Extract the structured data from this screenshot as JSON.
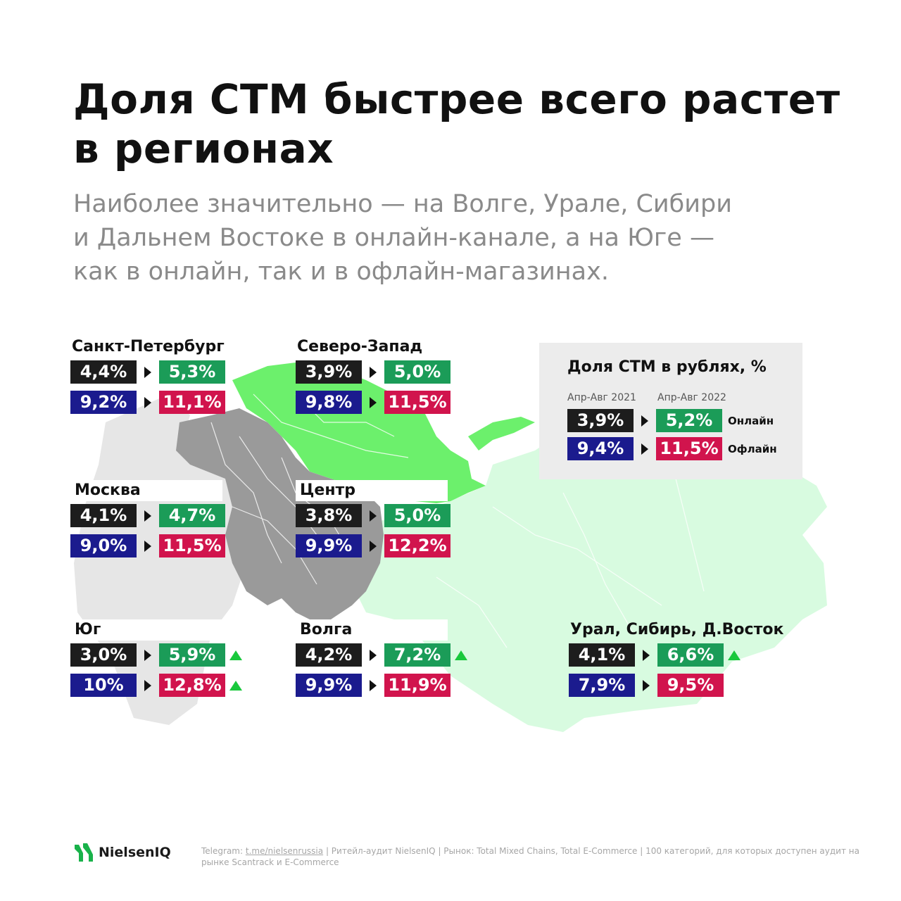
{
  "chart_data": {
    "type": "table",
    "title": "Доля СТМ быстрее всего растет\nв регионах",
    "subtitle": "Наиболее значительно — на Волге, Урале, Сибири\nи Дальнем Востоке в онлайн-канале, а на Юге —\nкак в онлайн, так и в офлайн-магазинах.",
    "legend": {
      "title": "Доля СТМ в рублях, %",
      "period_prev": "Апр-Авг 2021",
      "period_cur": "Апр-Авг 2022",
      "online_label": "Онлайн",
      "offline_label": "Офлайн",
      "online_prev": "3,9%",
      "online_cur": "5,2%",
      "offline_prev": "9,4%",
      "offline_cur": "11,5%"
    },
    "regions": [
      {
        "name": "Санкт-Петербург",
        "online_prev": "4,4%",
        "online_cur": "5,3%",
        "offline_prev": "9,2%",
        "offline_cur": "11,1%",
        "online_up": false,
        "offline_up": false
      },
      {
        "name": "Северо-Запад",
        "online_prev": "3,9%",
        "online_cur": "5,0%",
        "offline_prev": "9,8%",
        "offline_cur": "11,5%",
        "online_up": false,
        "offline_up": false
      },
      {
        "name": "Москва",
        "online_prev": "4,1%",
        "online_cur": "4,7%",
        "offline_prev": "9,0%",
        "offline_cur": "11,5%",
        "online_up": false,
        "offline_up": false
      },
      {
        "name": "Центр",
        "online_prev": "3,8%",
        "online_cur": "5,0%",
        "offline_prev": "9,9%",
        "offline_cur": "12,2%",
        "online_up": false,
        "offline_up": false
      },
      {
        "name": "Юг",
        "online_prev": "3,0%",
        "online_cur": "5,9%",
        "offline_prev": "10%",
        "offline_cur": "12,8%",
        "online_up": true,
        "offline_up": true
      },
      {
        "name": "Волга",
        "online_prev": "4,2%",
        "online_cur": "7,2%",
        "offline_prev": "9,9%",
        "offline_cur": "11,9%",
        "online_up": true,
        "offline_up": false
      },
      {
        "name": "Урал, Сибирь, Д.Восток",
        "online_prev": "4,1%",
        "online_cur": "6,6%",
        "offline_prev": "7,9%",
        "offline_cur": "9,5%",
        "online_up": true,
        "offline_up": false
      }
    ]
  },
  "colors": {
    "online_prev": "#1d1d1d",
    "online_cur": "#1b9c58",
    "offline_prev": "#1b1b8e",
    "offline_cur": "#d1144d",
    "growth_arrow": "#19c83c",
    "map_northwest": "#6cf06c",
    "map_east": "#d8fbe0",
    "map_center": "#9a9a9a",
    "map_west": "#e6e6e6"
  },
  "footer": {
    "brand": "NielsenIQ",
    "telegram_label": "Telegram:",
    "telegram_link": "t.me/nielsenrussia",
    "text": "| Ритейл-аудит NielsenIQ | Рынок: Total Mixed Chains, Total E-Commerce | 100 категорий, для которых доступен аудит на рынке Scantrack и E-Commerce"
  },
  "icons": {
    "change_arrow": "triangle-right-icon",
    "growth": "triangle-up-icon",
    "logo": "nielseniq-logo-icon"
  }
}
